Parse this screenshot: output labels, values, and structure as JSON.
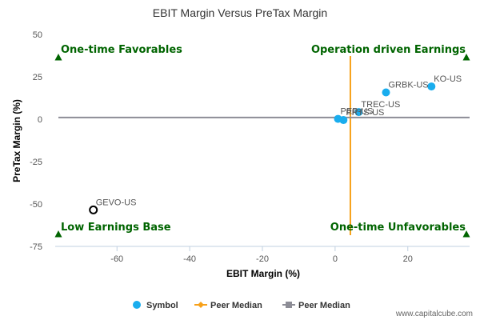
{
  "chart_data": {
    "type": "scatter",
    "title": "EBIT Margin Versus PreTax Margin",
    "xlabel": "EBIT Margin (%)",
    "ylabel": "PreTax Margin (%)",
    "xlim": [
      -77,
      37
    ],
    "ylim": [
      -75,
      50
    ],
    "x_ticks": [
      -60,
      -40,
      -20,
      0,
      20
    ],
    "y_ticks": [
      50,
      25,
      0,
      -25,
      -50,
      -75
    ],
    "grid": false,
    "series": [
      {
        "name": "Symbol",
        "color": "#1aadee",
        "points": [
          {
            "label": "KO-US",
            "x": 26.5,
            "y": 19.3
          },
          {
            "label": "GRBK-US",
            "x": 14.0,
            "y": 15.8
          },
          {
            "label": "TREC-US",
            "x": 6.5,
            "y": 4.2
          },
          {
            "label": "PEP-US",
            "x": 0.8,
            "y": 0.2
          },
          {
            "label": "PRTS-US",
            "x": 2.3,
            "y": -0.5
          }
        ]
      },
      {
        "name": "",
        "color": "#000000",
        "marker": "hollow-circle",
        "points": [
          {
            "label": "GEVO-US",
            "x": -66.5,
            "y": -53.5
          }
        ]
      },
      {
        "name": "Peer Median",
        "color": "#f7a11a",
        "type": "vertical-line",
        "x": 4.2
      },
      {
        "name": "Peer Median",
        "color": "#8d8d96",
        "type": "horizontal-line",
        "y": 1.0
      }
    ],
    "quadrants": [
      {
        "label": "One-time Favorables",
        "corner": "top-left"
      },
      {
        "label": "Operation driven Earnings",
        "corner": "top-right"
      },
      {
        "label": "Low Earnings Base",
        "corner": "bottom-left"
      },
      {
        "label": "One-time Unfavorables",
        "corner": "bottom-right"
      }
    ],
    "quadrant_color": "#006400",
    "legend": {
      "placement": "bottom-center",
      "items": [
        "Symbol",
        "Peer Median",
        "Peer Median"
      ]
    }
  },
  "credit": "www.capitalcube.com"
}
